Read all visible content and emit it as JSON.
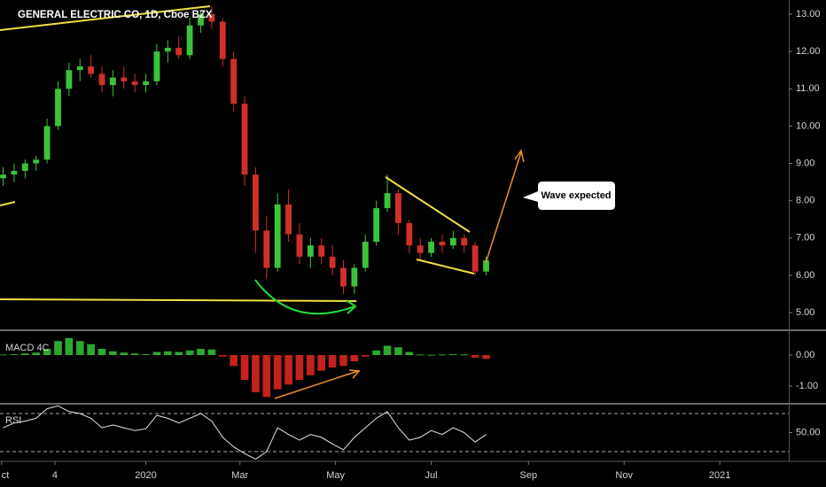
{
  "chart_data": [
    {
      "type": "candlestick",
      "title": "GENERAL ELECTRIC CO, 1D, Cboe BZX",
      "annotation": "Wave expected",
      "up_color": "#3bc43b",
      "down_color": "#d0302a",
      "x": [
        -91,
        -84,
        -77,
        -70,
        -63,
        -56,
        -49,
        -42,
        -35,
        -28,
        -21,
        -14,
        -7,
        0,
        7,
        14,
        21,
        28,
        35,
        42,
        49,
        56,
        63,
        70,
        77,
        84,
        91,
        98,
        105,
        112,
        119,
        126,
        133,
        140,
        147,
        154,
        161,
        168,
        175,
        182,
        189,
        196,
        203,
        210,
        217
      ],
      "open": [
        8.6,
        8.7,
        8.8,
        9.0,
        9.1,
        10.0,
        11.0,
        11.5,
        11.6,
        11.4,
        11.1,
        11.3,
        11.2,
        11.1,
        11.2,
        12.0,
        12.1,
        11.9,
        12.7,
        13.0,
        12.8,
        11.8,
        10.6,
        8.7,
        7.2,
        6.2,
        7.9,
        7.1,
        6.5,
        6.8,
        6.5,
        6.2,
        5.7,
        6.2,
        6.9,
        7.8,
        8.2,
        7.4,
        6.8,
        6.6,
        6.9,
        6.8,
        7.0,
        6.8,
        6.1
      ],
      "high": [
        8.9,
        9.0,
        9.1,
        9.2,
        10.2,
        11.2,
        11.7,
        11.8,
        11.9,
        11.6,
        11.5,
        11.6,
        11.4,
        11.4,
        12.2,
        12.3,
        12.4,
        12.9,
        13.1,
        13.2,
        12.9,
        12.0,
        10.8,
        8.9,
        7.6,
        8.2,
        8.3,
        7.4,
        7.0,
        7.0,
        6.8,
        6.4,
        6.3,
        7.1,
        8.0,
        8.7,
        8.3,
        7.5,
        7.0,
        7.0,
        7.1,
        7.2,
        7.1,
        6.9,
        6.5
      ],
      "low": [
        8.4,
        8.5,
        8.6,
        8.8,
        9.0,
        9.9,
        10.8,
        11.2,
        11.3,
        10.9,
        10.8,
        11.0,
        10.9,
        10.9,
        11.1,
        11.7,
        11.8,
        11.8,
        12.5,
        12.6,
        11.6,
        10.4,
        8.4,
        6.6,
        5.9,
        6.1,
        6.9,
        6.3,
        6.2,
        6.3,
        6.0,
        5.5,
        5.5,
        6.1,
        6.8,
        7.7,
        7.1,
        6.6,
        6.4,
        6.5,
        6.6,
        6.7,
        6.6,
        6.0,
        6.0
      ],
      "close": [
        8.7,
        8.8,
        9.0,
        9.1,
        10.0,
        11.0,
        11.5,
        11.6,
        11.4,
        11.1,
        11.3,
        11.2,
        11.1,
        11.2,
        12.0,
        12.1,
        11.9,
        12.7,
        13.0,
        12.8,
        11.8,
        10.6,
        8.7,
        7.2,
        6.2,
        7.9,
        7.1,
        6.5,
        6.8,
        6.5,
        6.2,
        5.7,
        6.2,
        6.9,
        7.8,
        8.2,
        7.4,
        6.8,
        6.6,
        6.9,
        6.8,
        7.0,
        6.8,
        6.1,
        6.4
      ],
      "xlim": [
        -93,
        410
      ],
      "ylim": [
        4.55,
        13.38
      ],
      "yticks": [
        {
          "value": 5,
          "label": "5.00"
        },
        {
          "value": 6,
          "label": "6.00"
        },
        {
          "value": 7,
          "label": "7.00"
        },
        {
          "value": 8,
          "label": "8.00"
        },
        {
          "value": 9,
          "label": "9.00"
        },
        {
          "value": 10,
          "label": "10.00"
        },
        {
          "value": 11,
          "label": "11.00"
        },
        {
          "value": 12,
          "label": "12.00"
        },
        {
          "value": 13,
          "label": "13.00"
        }
      ]
    },
    {
      "type": "bar",
      "title": "MACD 4C",
      "pos_color": "#2fa82f",
      "neg_color": "#c4221c",
      "x": [
        -91,
        -84,
        -77,
        -70,
        -63,
        -56,
        -49,
        -42,
        -35,
        -28,
        -21,
        -14,
        -7,
        0,
        7,
        14,
        21,
        28,
        35,
        42,
        49,
        56,
        63,
        70,
        77,
        84,
        91,
        98,
        105,
        112,
        119,
        126,
        133,
        140,
        147,
        154,
        161,
        168,
        175,
        182,
        189,
        196,
        203,
        210,
        217
      ],
      "values": [
        0.02,
        0.03,
        0.05,
        0.08,
        0.2,
        0.45,
        0.55,
        0.45,
        0.35,
        0.2,
        0.12,
        0.08,
        0.05,
        0.03,
        0.1,
        0.12,
        0.1,
        0.15,
        0.2,
        0.18,
        -0.05,
        -0.35,
        -0.8,
        -1.2,
        -1.35,
        -1.1,
        -0.95,
        -0.8,
        -0.65,
        -0.5,
        -0.4,
        -0.35,
        -0.2,
        -0.05,
        0.15,
        0.3,
        0.25,
        0.1,
        0.02,
        0.01,
        0.02,
        0.03,
        0.02,
        -0.08,
        -0.12
      ],
      "xlim": [
        -93,
        410
      ],
      "ylim": [
        -1.54,
        0.77
      ],
      "yticks": [
        {
          "value": 0,
          "label": "0.00"
        },
        {
          "value": -1,
          "label": "-1.00"
        }
      ]
    },
    {
      "type": "line",
      "title": "RSI",
      "color": "#e6e6e6",
      "bands": [
        30,
        70
      ],
      "x": [
        -91,
        -84,
        -77,
        -70,
        -63,
        -56,
        -49,
        -42,
        -35,
        -28,
        -21,
        -14,
        -7,
        0,
        7,
        14,
        21,
        28,
        35,
        42,
        49,
        56,
        63,
        70,
        77,
        84,
        91,
        98,
        105,
        112,
        119,
        126,
        133,
        140,
        147,
        154,
        161,
        168,
        175,
        182,
        189,
        196,
        203,
        210,
        217
      ],
      "values": [
        55,
        60,
        62,
        65,
        75,
        78,
        72,
        70,
        65,
        55,
        58,
        55,
        52,
        54,
        68,
        65,
        60,
        65,
        70,
        62,
        45,
        35,
        28,
        22,
        30,
        55,
        48,
        42,
        48,
        45,
        38,
        32,
        45,
        55,
        65,
        72,
        55,
        42,
        45,
        52,
        48,
        55,
        50,
        40,
        48
      ],
      "xlim": [
        -93,
        410
      ],
      "ylim": [
        20.7,
        79.3
      ],
      "yticks": [
        {
          "value": 50,
          "label": "50.00"
        }
      ],
      "xticks": [
        {
          "value": -92,
          "label": "ct"
        },
        {
          "value": -58,
          "label": "4"
        },
        {
          "value": 0,
          "label": "2020"
        },
        {
          "value": 60,
          "label": "Mar"
        },
        {
          "value": 121,
          "label": "May"
        },
        {
          "value": 182,
          "label": "Jul"
        },
        {
          "value": 244,
          "label": "Sep"
        },
        {
          "value": 305,
          "label": "Nov"
        },
        {
          "value": 366,
          "label": "2021"
        }
      ]
    }
  ]
}
